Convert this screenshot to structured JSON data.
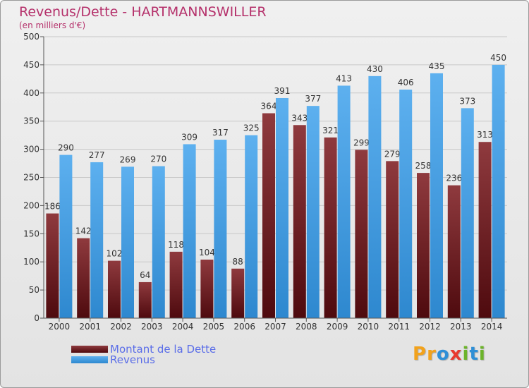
{
  "title": "Revenus/Dette - HARTMANNSWILLER",
  "subtitle": "(en milliers d'€)",
  "colors": {
    "title": "#b5316b",
    "dette": "#7a1f22",
    "revenus": "#3f9ae0",
    "legend_text": "#5b6ee8"
  },
  "logo": {
    "text": "Proxiti",
    "letters": [
      {
        "ch": "P",
        "color": "#f2a21c"
      },
      {
        "ch": "r",
        "color": "#f2a21c"
      },
      {
        "ch": "o",
        "color": "#2f8fd6"
      },
      {
        "ch": "x",
        "color": "#e83a2f"
      },
      {
        "ch": "i",
        "color": "#6cb42a"
      },
      {
        "ch": "t",
        "color": "#2f8fd6"
      },
      {
        "ch": "i",
        "color": "#6cb42a"
      }
    ]
  },
  "chart_data": {
    "type": "bar",
    "categories": [
      "2000",
      "2001",
      "2002",
      "2003",
      "2004",
      "2005",
      "2006",
      "2007",
      "2008",
      "2009",
      "2010",
      "2011",
      "2012",
      "2013",
      "2014"
    ],
    "series": [
      {
        "name": "Montant de la Dette",
        "color": "#7a1f22",
        "values": [
          186,
          142,
          102,
          64,
          118,
          104,
          88,
          364,
          343,
          321,
          299,
          279,
          258,
          236,
          313
        ]
      },
      {
        "name": "Revenus",
        "color": "#3f9ae0",
        "values": [
          290,
          277,
          269,
          270,
          309,
          317,
          325,
          391,
          377,
          413,
          430,
          406,
          435,
          373,
          450
        ]
      }
    ],
    "ylim": [
      0,
      500
    ],
    "yticks": [
      0,
      50,
      100,
      150,
      200,
      250,
      300,
      350,
      400,
      450,
      500
    ],
    "grid": true,
    "legend_position": "bottom-left"
  }
}
